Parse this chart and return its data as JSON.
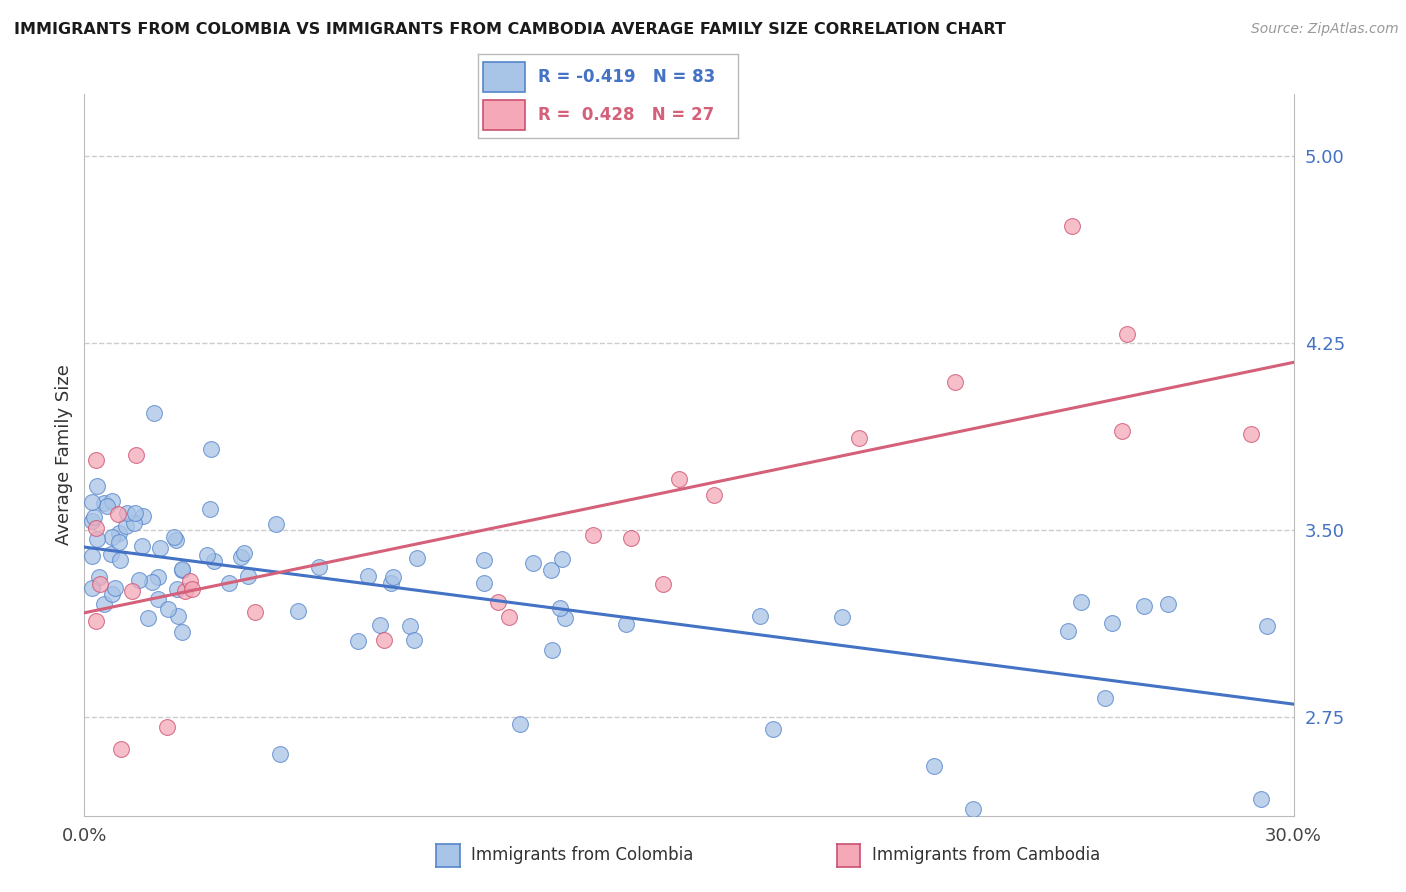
{
  "title": "IMMIGRANTS FROM COLOMBIA VS IMMIGRANTS FROM CAMBODIA AVERAGE FAMILY SIZE CORRELATION CHART",
  "source": "Source: ZipAtlas.com",
  "ylabel": "Average Family Size",
  "yticks": [
    2.75,
    3.5,
    4.25,
    5.0
  ],
  "xlim": [
    0.0,
    30.0
  ],
  "ylim": [
    2.35,
    5.25
  ],
  "colombia_color": "#a8c4e6",
  "cambodia_color": "#f4a8b8",
  "colombia_line_color": "#4472c4",
  "cambodia_line_color": "#d4607a",
  "colombia_edge_color": "#5585cc",
  "cambodia_edge_color": "#cc5070",
  "colombia_R": -0.419,
  "cambodia_R": 0.428,
  "colombia_N": 83,
  "cambodia_N": 27,
  "colombia_slope": -0.018,
  "colombia_intercept": 3.42,
  "cambodia_slope": 0.032,
  "cambodia_intercept": 3.18
}
